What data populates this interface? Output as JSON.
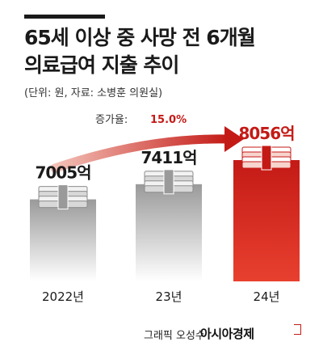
{
  "title_line1": "65세 이상 중 사망 전 6개월",
  "title_line2": "의료급여 지출 추이",
  "source": "(단위: 원, 자료: 소병훈 의원실)",
  "growth_label": "증가율:",
  "growth_value": "15.0%",
  "footer": {
    "credit": "그래픽 오성수",
    "brand": "아시아경제"
  },
  "colors": {
    "accent": "#c41a16",
    "grey_bar": "#8a8a8a",
    "text": "#1a1a1a"
  },
  "chart_data": {
    "type": "bar",
    "categories": [
      "2022년",
      "23년",
      "24년"
    ],
    "values": [
      7005,
      7411,
      8056
    ],
    "value_labels": [
      "7005억",
      "7411억",
      "8056억"
    ],
    "unit": "억",
    "highlight_index": 2
  }
}
